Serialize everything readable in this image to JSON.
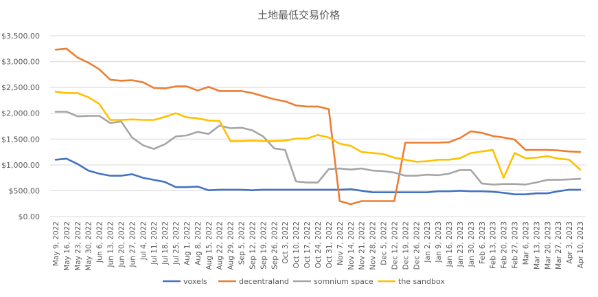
{
  "chart_data": {
    "type": "line",
    "title": "土地最低交易价格",
    "xlabel": "",
    "ylabel": "",
    "ylim": [
      0,
      3500
    ],
    "y_ticks": [
      "$0.00",
      "$500.00",
      "$1,000.00",
      "$1,500.00",
      "$2,000.00",
      "$2,500.00",
      "$3,000.00",
      "$3,500.00"
    ],
    "grid": true,
    "legend": "bottom",
    "categories": [
      "May 9, 2022",
      "May 16, 2022",
      "May 23, 2022",
      "May 30, 2022",
      "Jun 6, 2022",
      "Jun 13, 2022",
      "Jun 20, 2022",
      "Jun 27, 2022",
      "Jul 4, 2022",
      "Jul 11, 2022",
      "Jul 18, 2022",
      "Jul 25, 2022",
      "Aug 1, 2022",
      "Aug 8, 2022",
      "Aug 15, 2022",
      "Aug 22, 2022",
      "Aug 29, 2022",
      "Sep 5, 2022",
      "Sep 12, 2022",
      "Sep 19, 2022",
      "Sep 26, 2022",
      "Oct 3, 2022",
      "Oct 10, 2022",
      "Oct 17, 2022",
      "Oct 24, 2022",
      "Oct 31, 2022",
      "Nov 7, 2022",
      "Nov 14, 2022",
      "Nov 21, 2022",
      "Nov 28, 2022",
      "Dec 5, 2022",
      "Dec 12, 2022",
      "Dec 19, 2022",
      "Dec 26, 2022",
      "Jan 2, 2023",
      "Jan 9, 2023",
      "Jan 16, 2023",
      "Jan 23, 2023",
      "Jan 30, 2023",
      "Feb 6, 2023",
      "Feb 13, 2023",
      "Feb 20, 2023",
      "Feb 27, 2023",
      "Mar 6, 2023",
      "Mar 13, 2023",
      "Mar 20, 2023",
      "Mar 27, 2023",
      "Apr 3, 2023",
      "Apr 10, 2023"
    ],
    "series": [
      {
        "name": "voxels",
        "color": "#4472C4",
        "values": [
          1100,
          1120,
          1020,
          890,
          830,
          790,
          790,
          820,
          750,
          710,
          670,
          570,
          570,
          580,
          510,
          520,
          520,
          520,
          510,
          520,
          520,
          520,
          520,
          520,
          520,
          520,
          520,
          530,
          500,
          470,
          470,
          470,
          470,
          470,
          470,
          490,
          490,
          500,
          490,
          490,
          480,
          460,
          430,
          430,
          450,
          450,
          490,
          520,
          520
        ]
      },
      {
        "name": "decentraland",
        "color": "#ED7D31",
        "values": [
          3230,
          3250,
          3080,
          2980,
          2850,
          2650,
          2630,
          2640,
          2600,
          2490,
          2480,
          2520,
          2520,
          2440,
          2510,
          2430,
          2430,
          2430,
          2390,
          2330,
          2270,
          2230,
          2150,
          2130,
          2130,
          2080,
          300,
          240,
          300,
          300,
          300,
          300,
          1430,
          1430,
          1430,
          1430,
          1440,
          1520,
          1650,
          1620,
          1560,
          1530,
          1490,
          1290,
          1290,
          1290,
          1280,
          1260,
          1250
        ]
      },
      {
        "name": "somnium space",
        "color": "#A5A5A5",
        "values": [
          2030,
          2030,
          1940,
          1950,
          1950,
          1810,
          1840,
          1530,
          1380,
          1310,
          1400,
          1550,
          1570,
          1640,
          1600,
          1760,
          1710,
          1720,
          1670,
          1550,
          1320,
          1290,
          680,
          660,
          660,
          920,
          930,
          910,
          930,
          890,
          880,
          850,
          790,
          790,
          810,
          800,
          830,
          900,
          900,
          640,
          620,
          630,
          630,
          620,
          660,
          710,
          710,
          720,
          730
        ]
      },
      {
        "name": "the sandbox",
        "color": "#FFC000",
        "values": [
          2420,
          2390,
          2390,
          2310,
          2180,
          1870,
          1870,
          1880,
          1870,
          1870,
          1930,
          2000,
          1920,
          1900,
          1860,
          1850,
          1460,
          1460,
          1470,
          1460,
          1460,
          1470,
          1510,
          1510,
          1580,
          1530,
          1410,
          1370,
          1250,
          1230,
          1210,
          1140,
          1100,
          1060,
          1070,
          1100,
          1100,
          1130,
          1230,
          1260,
          1290,
          750,
          1230,
          1130,
          1140,
          1170,
          1120,
          1100,
          910
        ]
      }
    ]
  }
}
